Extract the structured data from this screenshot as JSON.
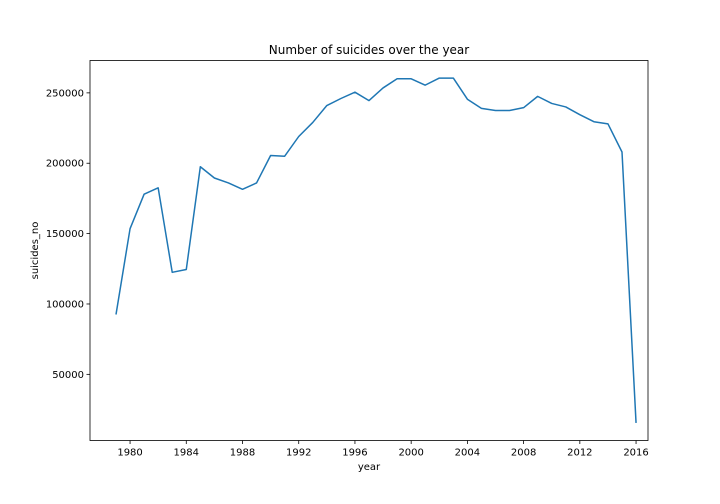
{
  "chart_data": {
    "type": "line",
    "title": "Number of suicides over the year",
    "xlabel": "year",
    "ylabel": "suicides_no",
    "xlim": [
      1977.15,
      2016.85
    ],
    "ylim": [
      3000,
      273000
    ],
    "x_ticks": [
      1980,
      1984,
      1988,
      1992,
      1996,
      2000,
      2004,
      2008,
      2012,
      2016
    ],
    "y_ticks": [
      50000,
      100000,
      150000,
      200000,
      250000
    ],
    "grid": false,
    "line_color": "#1f77b4",
    "series": [
      {
        "x": [
          1979,
          1980,
          1981,
          1982,
          1983,
          1984,
          1985,
          1986,
          1987,
          1988,
          1989,
          1990,
          1991,
          1992,
          1993,
          1994,
          1995,
          1996,
          1997,
          1998,
          1999,
          2000,
          2001,
          2002,
          2003,
          2004,
          2005,
          2006,
          2007,
          2008,
          2009,
          2010,
          2011,
          2012,
          2013,
          2014,
          2015,
          2016
        ],
        "y": [
          92500,
          153500,
          178000,
          182500,
          122500,
          124500,
          197500,
          189500,
          186000,
          181500,
          186000,
          205500,
          205000,
          219000,
          229000,
          241000,
          246000,
          250500,
          244500,
          253500,
          260000,
          260000,
          255500,
          260500,
          260500,
          245500,
          239000,
          237500,
          237500,
          239500,
          247500,
          242500,
          240000,
          234500,
          229500,
          228000,
          208000,
          15500
        ]
      }
    ]
  }
}
